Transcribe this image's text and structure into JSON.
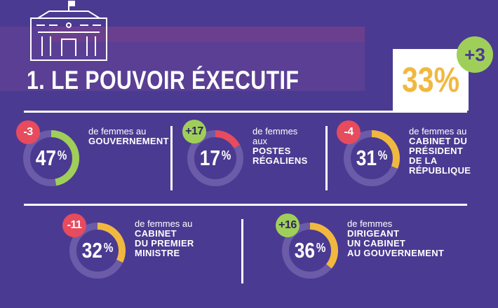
{
  "title": "1. LE POUVOIR ÉXECUTIF",
  "overall": {
    "value": "33",
    "unit": "%",
    "change": "+3"
  },
  "colors": {
    "background": "#4b3a91",
    "track": "#6b5ba8",
    "green": "#9fcf59",
    "yellow": "#f1b840",
    "red": "#e74b5e",
    "white": "#ffffff"
  },
  "icons": {
    "header": "government-building-icon"
  },
  "chart_data": [
    {
      "type": "donut",
      "value": 47,
      "unit": "%",
      "change": "-3",
      "arc_color": "#9fcf59",
      "label_prefix": "de femmes au",
      "label_strong": "GOUVERNEMENT"
    },
    {
      "type": "donut",
      "value": 17,
      "unit": "%",
      "change": "+17",
      "arc_color": "#e74b5e",
      "label_prefix": "de femmes\naux",
      "label_strong": "POSTES\nRÉGALIENS"
    },
    {
      "type": "donut",
      "value": 31,
      "unit": "%",
      "change": "-4",
      "arc_color": "#f1b840",
      "label_prefix": "de femmes au",
      "label_strong": "CABINET DU\nPRÉSIDENT\nDE LA\nRÉPUBLIQUE"
    },
    {
      "type": "donut",
      "value": 32,
      "unit": "%",
      "change": "-11",
      "arc_color": "#f1b840",
      "label_prefix": "de femmes au",
      "label_strong": "CABINET\nDU PREMIER\nMINISTRE"
    },
    {
      "type": "donut",
      "value": 36,
      "unit": "%",
      "change": "+16",
      "arc_color": "#f1b840",
      "label_prefix": "de femmes",
      "label_strong": "DIRIGEANT\nUN CABINET\nAU GOUVERNEMENT"
    }
  ]
}
